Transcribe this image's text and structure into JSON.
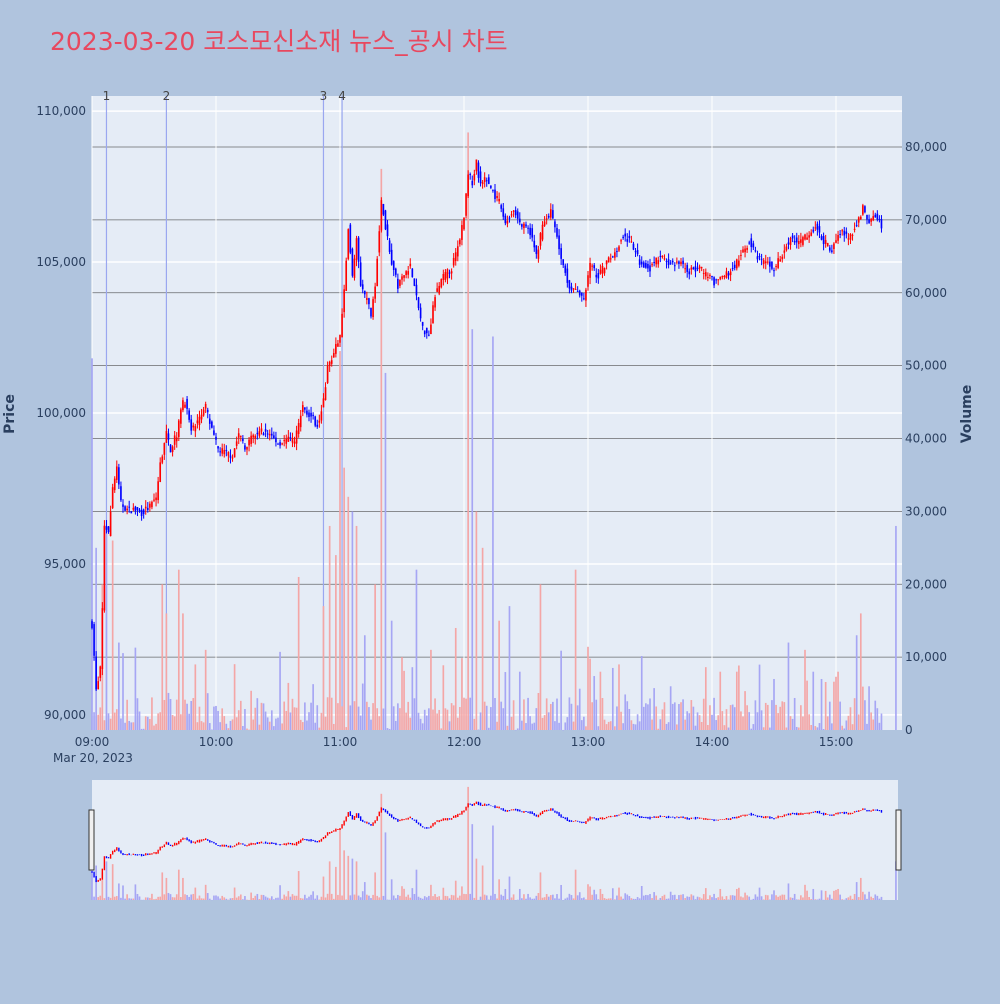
{
  "title": "2023-03-20 코스모신소재 뉴스_공시 차트",
  "colors": {
    "background": "#b0c4de",
    "plot_bg": "#e5ecf6",
    "title": "#e8485f",
    "up": "#ff0000",
    "down": "#0000ff",
    "up_volume": "#f4a6a6",
    "down_volume": "#a6a6f4",
    "news_line": "#9aa7f0",
    "volume_grid": "#4a4a4a"
  },
  "chart_data": {
    "type": "candlestick+bar",
    "title": "2023-03-20 코스모신소재 뉴스_공시 차트",
    "xlabel": "",
    "ylabel": "Price",
    "y2label": "Volume",
    "x_range": [
      "09:00",
      "15:30"
    ],
    "x_ticks": [
      "09:00",
      "10:00",
      "11:00",
      "12:00",
      "13:00",
      "14:00",
      "15:00"
    ],
    "x_date_label": "Mar 20, 2023",
    "ylim": [
      89500,
      110500
    ],
    "y_ticks": [
      90000,
      95000,
      100000,
      105000,
      110000
    ],
    "y_tick_labels": [
      "90,000",
      "95,000",
      "100,000",
      "105,000",
      "110,000"
    ],
    "y2lim": [
      0,
      87000
    ],
    "y2_ticks": [
      0,
      10000,
      20000,
      30000,
      40000,
      50000,
      60000,
      70000,
      80000
    ],
    "y2_tick_labels": [
      "0",
      "10,000",
      "20,000",
      "30,000",
      "40,000",
      "50,000",
      "60,000",
      "70,000",
      "80,000"
    ],
    "news_markers": [
      {
        "label": "1",
        "time": "09:07"
      },
      {
        "label": "2",
        "time": "09:36"
      },
      {
        "label": "3",
        "time": "10:52"
      },
      {
        "label": "4",
        "time": "11:01"
      }
    ],
    "price_path": [
      [
        "09:00",
        93000
      ],
      [
        "09:02",
        90800
      ],
      [
        "09:04",
        91500
      ],
      [
        "09:05",
        93500
      ],
      [
        "09:06",
        96300
      ],
      [
        "09:08",
        96000
      ],
      [
        "09:10",
        97500
      ],
      [
        "09:12",
        98200
      ],
      [
        "09:14",
        97000
      ],
      [
        "09:17",
        96800
      ],
      [
        "09:20",
        96800
      ],
      [
        "09:24",
        96700
      ],
      [
        "09:28",
        96900
      ],
      [
        "09:31",
        97200
      ],
      [
        "09:33",
        98300
      ],
      [
        "09:36",
        99300
      ],
      [
        "09:38",
        98800
      ],
      [
        "09:41",
        99300
      ],
      [
        "09:43",
        100200
      ],
      [
        "09:45",
        100400
      ],
      [
        "09:48",
        99400
      ],
      [
        "09:52",
        99800
      ],
      [
        "09:55",
        100200
      ],
      [
        "09:58",
        99400
      ],
      [
        "10:01",
        98800
      ],
      [
        "10:04",
        98700
      ],
      [
        "10:08",
        98600
      ],
      [
        "10:11",
        99300
      ],
      [
        "10:14",
        98900
      ],
      [
        "10:18",
        99200
      ],
      [
        "10:22",
        99400
      ],
      [
        "10:26",
        99300
      ],
      [
        "10:30",
        99000
      ],
      [
        "10:34",
        99100
      ],
      [
        "10:38",
        99100
      ],
      [
        "10:42",
        100200
      ],
      [
        "10:46",
        99900
      ],
      [
        "10:49",
        99600
      ],
      [
        "10:52",
        100400
      ],
      [
        "10:54",
        101500
      ],
      [
        "10:57",
        102000
      ],
      [
        "11:00",
        102600
      ],
      [
        "11:02",
        104000
      ],
      [
        "11:04",
        106200
      ],
      [
        "11:06",
        104500
      ],
      [
        "11:08",
        105700
      ],
      [
        "11:10",
        104200
      ],
      [
        "11:13",
        103700
      ],
      [
        "11:15",
        103300
      ],
      [
        "11:17",
        104300
      ],
      [
        "11:20",
        107000
      ],
      [
        "11:22",
        106200
      ],
      [
        "11:25",
        105000
      ],
      [
        "11:28",
        104200
      ],
      [
        "11:31",
        104600
      ],
      [
        "11:34",
        104900
      ],
      [
        "11:37",
        103800
      ],
      [
        "11:40",
        102800
      ],
      [
        "11:43",
        102600
      ],
      [
        "11:46",
        103900
      ],
      [
        "11:50",
        104500
      ],
      [
        "11:54",
        104800
      ],
      [
        "11:57",
        105500
      ],
      [
        "12:00",
        106500
      ],
      [
        "12:02",
        108000
      ],
      [
        "12:04",
        107600
      ],
      [
        "12:06",
        108300
      ],
      [
        "12:08",
        107500
      ],
      [
        "12:11",
        107800
      ],
      [
        "12:14",
        107300
      ],
      [
        "12:17",
        107000
      ],
      [
        "12:20",
        106300
      ],
      [
        "12:24",
        106700
      ],
      [
        "12:28",
        106200
      ],
      [
        "12:32",
        106000
      ],
      [
        "12:35",
        105200
      ],
      [
        "12:38",
        106200
      ],
      [
        "12:42",
        106700
      ],
      [
        "12:45",
        105800
      ],
      [
        "12:48",
        104900
      ],
      [
        "12:51",
        104200
      ],
      [
        "12:54",
        104000
      ],
      [
        "12:58",
        103800
      ],
      [
        "13:01",
        104900
      ],
      [
        "13:05",
        104500
      ],
      [
        "13:09",
        105000
      ],
      [
        "13:13",
        105300
      ],
      [
        "13:17",
        105900
      ],
      [
        "13:21",
        105600
      ],
      [
        "13:25",
        105000
      ],
      [
        "13:30",
        104800
      ],
      [
        "13:35",
        105200
      ],
      [
        "13:39",
        104900
      ],
      [
        "13:44",
        105000
      ],
      [
        "13:49",
        104700
      ],
      [
        "13:54",
        104800
      ],
      [
        "13:58",
        104500
      ],
      [
        "14:02",
        104300
      ],
      [
        "14:06",
        104500
      ],
      [
        "14:10",
        104800
      ],
      [
        "14:14",
        105200
      ],
      [
        "14:18",
        105700
      ],
      [
        "14:22",
        105100
      ],
      [
        "14:26",
        105000
      ],
      [
        "14:30",
        104800
      ],
      [
        "14:34",
        105300
      ],
      [
        "14:38",
        105800
      ],
      [
        "14:42",
        105600
      ],
      [
        "14:46",
        105900
      ],
      [
        "14:50",
        106200
      ],
      [
        "14:54",
        105700
      ],
      [
        "14:58",
        105400
      ],
      [
        "15:02",
        106000
      ],
      [
        "15:06",
        105800
      ],
      [
        "15:10",
        106200
      ],
      [
        "15:13",
        106800
      ],
      [
        "15:16",
        106300
      ],
      [
        "15:19",
        106600
      ],
      [
        "15:22",
        106200
      ]
    ],
    "volume_spikes": [
      [
        "09:00",
        51000
      ],
      [
        "09:02",
        25000
      ],
      [
        "09:05",
        20000
      ],
      [
        "09:07",
        28000
      ],
      [
        "09:10",
        26000
      ],
      [
        "09:13",
        12000
      ],
      [
        "09:34",
        20000
      ],
      [
        "09:36",
        16000
      ],
      [
        "09:42",
        22000
      ],
      [
        "09:44",
        16000
      ],
      [
        "09:50",
        9000
      ],
      [
        "09:55",
        11000
      ],
      [
        "10:12",
        4000
      ],
      [
        "10:40",
        21000
      ],
      [
        "10:52",
        17000
      ],
      [
        "10:55",
        28000
      ],
      [
        "10:58",
        24000
      ],
      [
        "11:00",
        52000
      ],
      [
        "11:02",
        36000
      ],
      [
        "11:04",
        32000
      ],
      [
        "11:06",
        30000
      ],
      [
        "11:08",
        28000
      ],
      [
        "11:12",
        13000
      ],
      [
        "11:17",
        20000
      ],
      [
        "11:20",
        77000
      ],
      [
        "11:22",
        49000
      ],
      [
        "11:25",
        15000
      ],
      [
        "11:30",
        10000
      ],
      [
        "11:37",
        22000
      ],
      [
        "11:44",
        11000
      ],
      [
        "11:56",
        14000
      ],
      [
        "12:02",
        82000
      ],
      [
        "12:04",
        55000
      ],
      [
        "12:06",
        30000
      ],
      [
        "12:09",
        25000
      ],
      [
        "12:14",
        54000
      ],
      [
        "12:17",
        15000
      ],
      [
        "12:22",
        17000
      ],
      [
        "12:27",
        8000
      ],
      [
        "12:37",
        20000
      ],
      [
        "12:54",
        22000
      ],
      [
        "13:06",
        8000
      ],
      [
        "13:15",
        9000
      ],
      [
        "13:40",
        6000
      ],
      [
        "14:04",
        8000
      ],
      [
        "14:12",
        8000
      ],
      [
        "14:30",
        7000
      ],
      [
        "14:37",
        12000
      ],
      [
        "14:45",
        11000
      ],
      [
        "14:49",
        8000
      ],
      [
        "14:53",
        7000
      ],
      [
        "15:01",
        8000
      ],
      [
        "15:10",
        13000
      ],
      [
        "15:12",
        16000
      ],
      [
        "15:16",
        6000
      ],
      [
        "15:29",
        28000
      ]
    ]
  },
  "navigator": {
    "label": "range-slider"
  }
}
